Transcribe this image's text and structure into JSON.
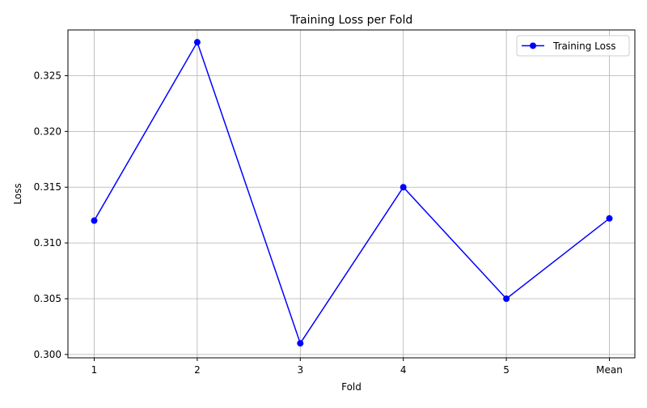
{
  "chart_data": {
    "type": "line",
    "title": "Training Loss per Fold",
    "xlabel": "Fold",
    "ylabel": "Loss",
    "categories": [
      "1",
      "2",
      "3",
      "4",
      "5",
      "Mean"
    ],
    "series": [
      {
        "name": "Training Loss",
        "values": [
          0.312,
          0.328,
          0.301,
          0.315,
          0.305,
          0.3122
        ],
        "color": "#0000ff",
        "marker": "circle"
      }
    ],
    "ylim": [
      0.2997,
      0.3291
    ],
    "yticks": [
      0.3,
      0.305,
      0.31,
      0.315,
      0.32,
      0.325
    ],
    "ytick_labels": [
      "0.300",
      "0.305",
      "0.310",
      "0.315",
      "0.320",
      "0.325"
    ],
    "grid": true,
    "grid_color": "#b0b0b0",
    "legend_position": "top-right"
  }
}
